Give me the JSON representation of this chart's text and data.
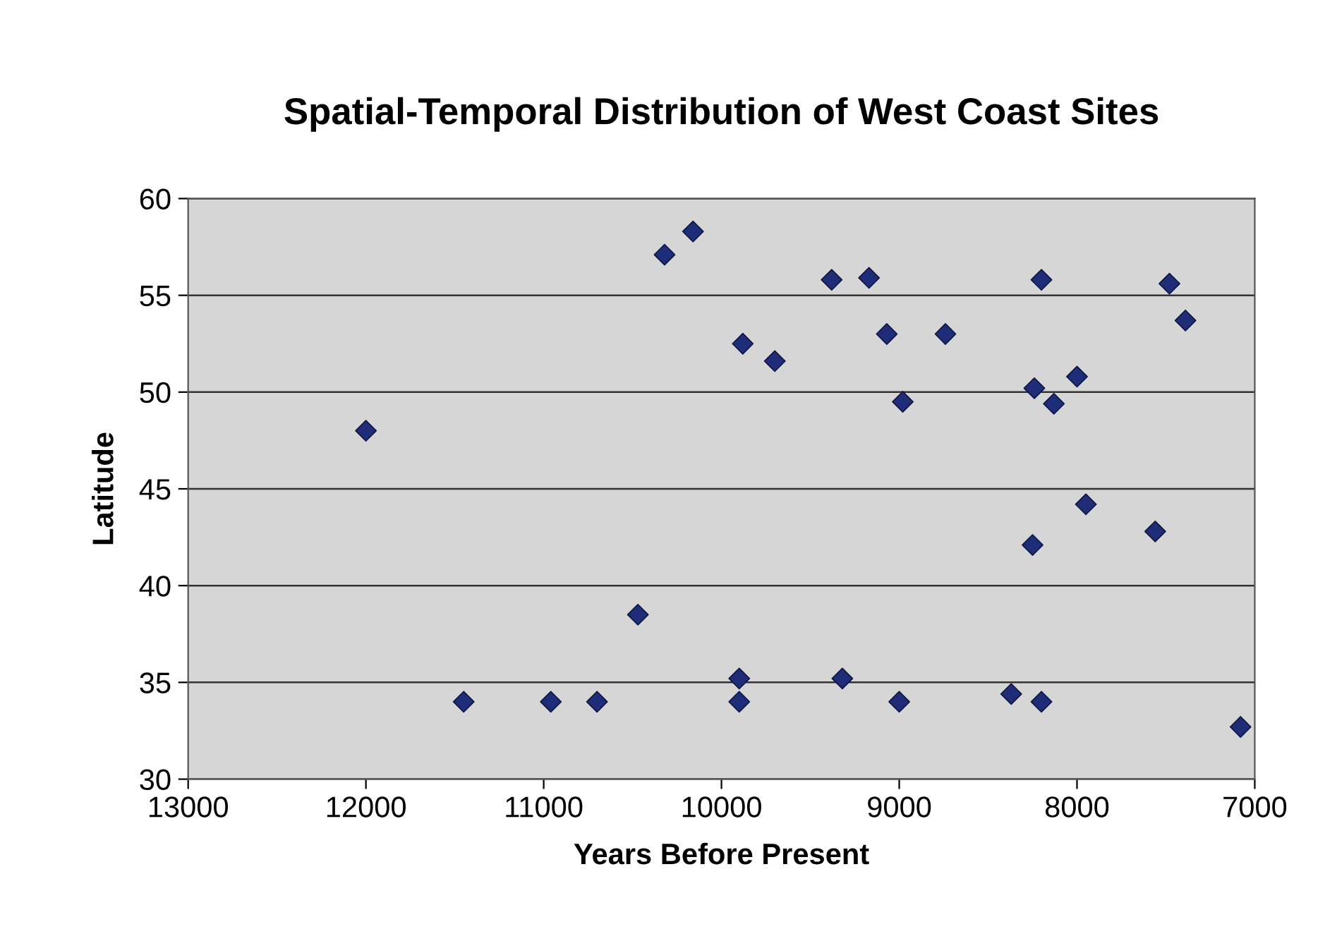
{
  "chart_data": {
    "type": "scatter",
    "title": "Spatial-Temporal Distribution of West Coast Sites",
    "xlabel": "Years Before Present",
    "ylabel": "Latitude",
    "series": [
      {
        "color": "#1f2d78",
        "x": [
          12000,
          11450,
          10960,
          10700,
          10470,
          10320,
          10160,
          9880,
          9900,
          9900,
          9700,
          9380,
          9170,
          9070,
          8980,
          8740,
          9320,
          9000,
          8370,
          8200,
          8200,
          8240,
          8130,
          8000,
          7950,
          8250,
          7560,
          7480,
          7390,
          7080
        ],
        "values": [
          48.0,
          34.0,
          34.0,
          34.0,
          38.5,
          57.1,
          58.3,
          52.5,
          35.2,
          34.0,
          51.6,
          55.8,
          55.9,
          53.0,
          49.5,
          53.0,
          35.2,
          34.0,
          34.4,
          34.0,
          55.8,
          50.2,
          49.4,
          50.8,
          44.2,
          42.1,
          42.8,
          55.6,
          53.7,
          32.7
        ]
      }
    ],
    "marker": "diamond",
    "xlim": [
      13000,
      7000
    ],
    "ylim": [
      30,
      60
    ],
    "xticks": [
      13000,
      12000,
      11000,
      10000,
      9000,
      8000,
      7000
    ],
    "yticks": [
      30,
      35,
      40,
      45,
      50,
      55,
      60
    ],
    "grid": "y"
  }
}
